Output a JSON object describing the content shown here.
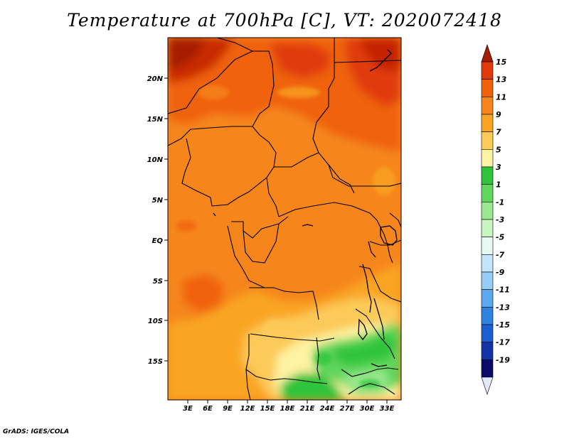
{
  "map": {
    "title": "Temperature at 700hPa [C], VT: 2020072418",
    "credit": "GrADS: IGES/COLA",
    "lat_labels": [
      "20N",
      "15N",
      "10N",
      "5N",
      "EQ",
      "5S",
      "10S",
      "15S"
    ],
    "lon_labels": [
      "3E",
      "6E",
      "9E",
      "12E",
      "15E",
      "18E",
      "21E",
      "24E",
      "27E",
      "30E",
      "33E"
    ]
  },
  "colorbar": {
    "labels": [
      "15",
      "13",
      "11",
      "9",
      "7",
      "5",
      "3",
      "1",
      "-1",
      "-3",
      "-5",
      "-7",
      "-9",
      "-11",
      "-13",
      "-15",
      "-17",
      "-19"
    ],
    "colors": [
      "#a51d00",
      "#e03a0a",
      "#f0620a",
      "#f6861a",
      "#f9a523",
      "#fcca58",
      "#fef3a2",
      "#2ec43a",
      "#5fd65c",
      "#9ae88f",
      "#c8f5c0",
      "#e6faf2",
      "#c3e4fb",
      "#95cdf7",
      "#5ba8ee",
      "#2f83e0",
      "#1b5ed1",
      "#1133a8",
      "#0a0a6a",
      "#e6e6fc"
    ]
  }
}
